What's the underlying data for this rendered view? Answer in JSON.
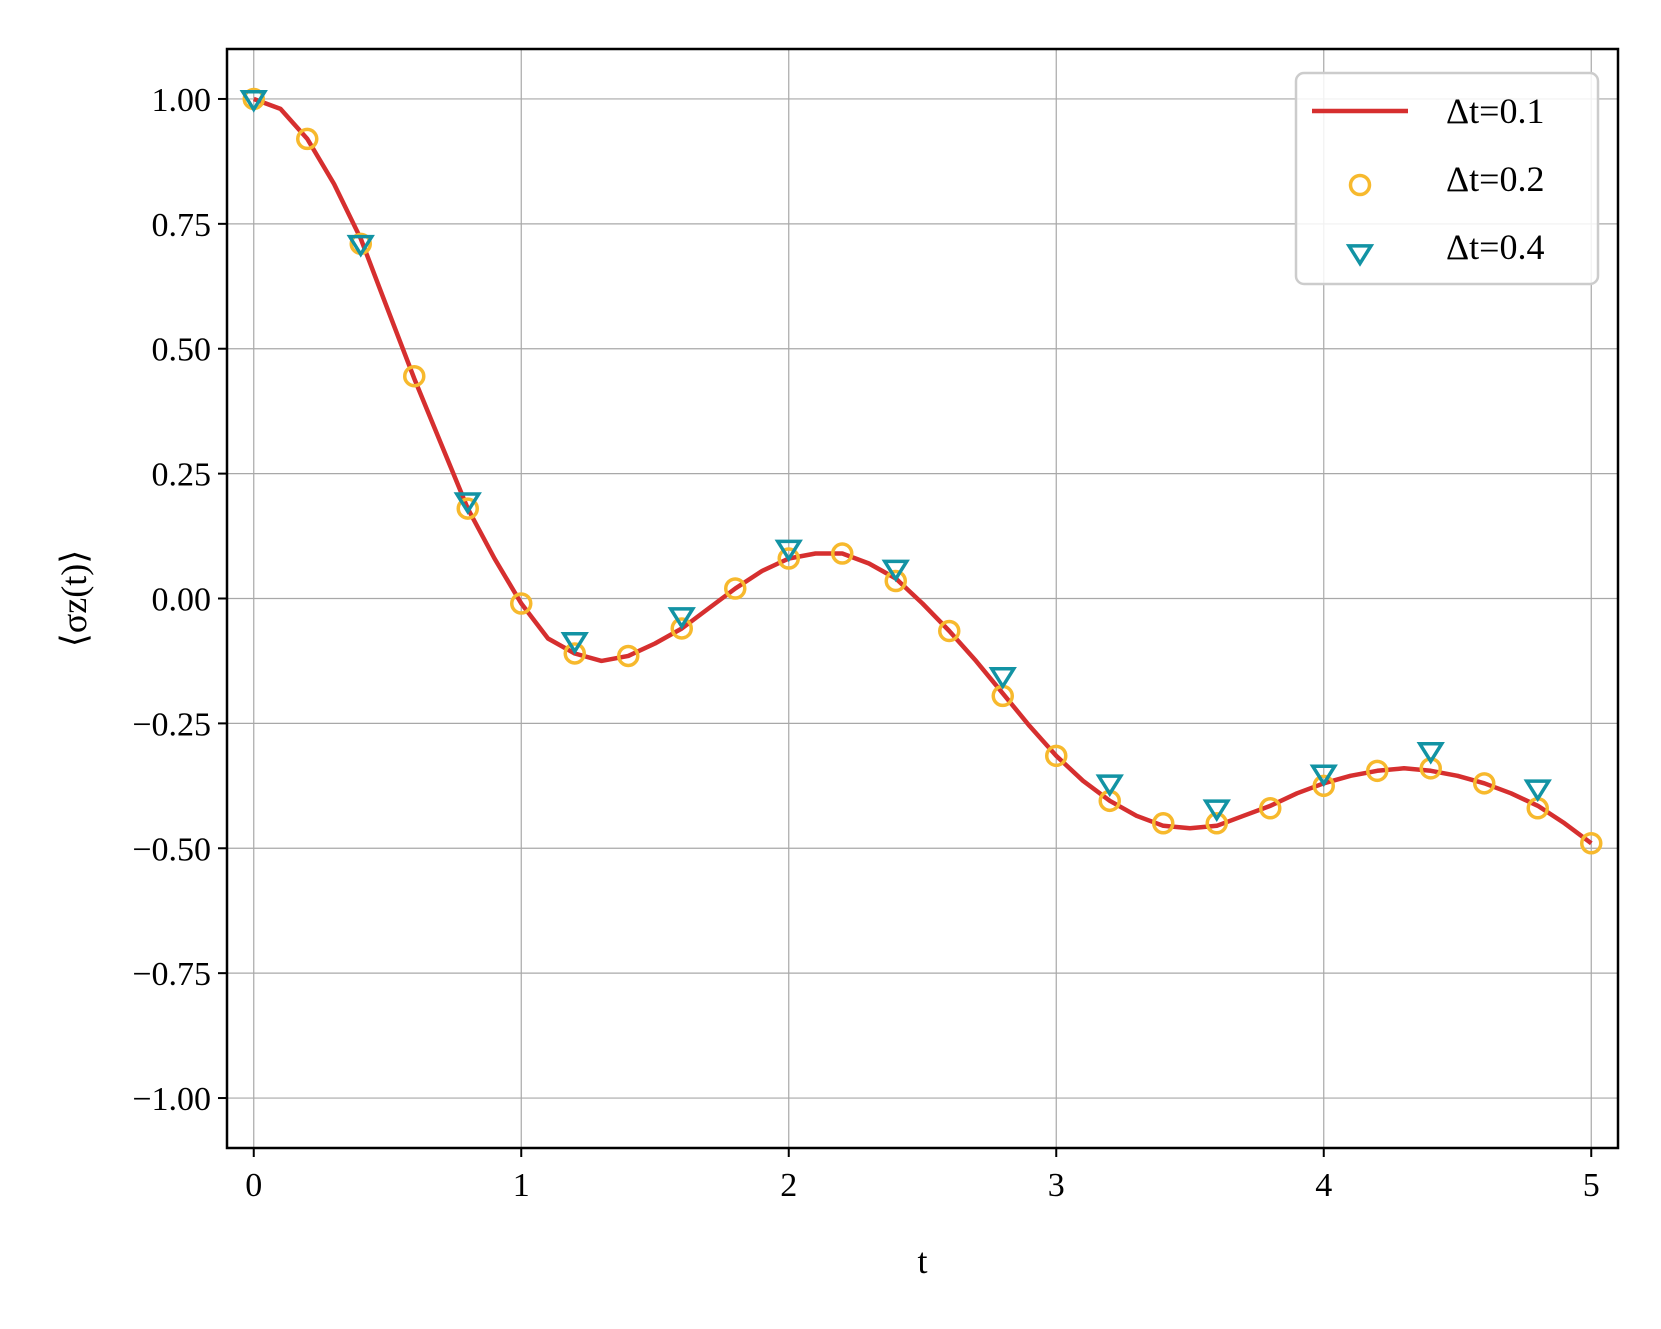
{
  "chart_data": {
    "type": "line",
    "title": "",
    "xlabel": "t",
    "ylabel": "⟨σz(t)⟩",
    "xlim": [
      -0.1,
      5.1
    ],
    "ylim": [
      -1.1,
      1.1
    ],
    "x_ticks": [
      0,
      1,
      2,
      3,
      4,
      5
    ],
    "x_tick_labels": [
      "0",
      "1",
      "2",
      "3",
      "4",
      "5"
    ],
    "y_ticks": [
      1.0,
      0.75,
      0.5,
      0.25,
      0.0,
      -0.25,
      -0.5,
      -0.75,
      -1.0
    ],
    "y_tick_labels": [
      "1.00",
      "0.75",
      "0.50",
      "0.25",
      "0.00",
      "−0.25",
      "−0.50",
      "−0.75",
      "−1.00"
    ],
    "grid": true,
    "legend_position": "top-right",
    "series": [
      {
        "name": "Δt=0.1",
        "style": "line",
        "color": "#d62f2f",
        "x": [
          0,
          0.1,
          0.2,
          0.3,
          0.4,
          0.5,
          0.6,
          0.7,
          0.8,
          0.9,
          1.0,
          1.1,
          1.2,
          1.3,
          1.4,
          1.5,
          1.6,
          1.7,
          1.8,
          1.9,
          2.0,
          2.1,
          2.2,
          2.3,
          2.4,
          2.5,
          2.6,
          2.7,
          2.8,
          2.9,
          3.0,
          3.1,
          3.2,
          3.3,
          3.4,
          3.5,
          3.6,
          3.7,
          3.8,
          3.9,
          4.0,
          4.1,
          4.2,
          4.3,
          4.4,
          4.5,
          4.6,
          4.7,
          4.8,
          4.9,
          5.0
        ],
        "y": [
          1.0,
          0.98,
          0.92,
          0.83,
          0.72,
          0.58,
          0.44,
          0.31,
          0.18,
          0.08,
          -0.01,
          -0.08,
          -0.11,
          -0.125,
          -0.115,
          -0.09,
          -0.06,
          -0.02,
          0.02,
          0.055,
          0.08,
          0.09,
          0.09,
          0.07,
          0.04,
          -0.01,
          -0.065,
          -0.125,
          -0.19,
          -0.255,
          -0.315,
          -0.365,
          -0.405,
          -0.435,
          -0.455,
          -0.46,
          -0.455,
          -0.435,
          -0.415,
          -0.39,
          -0.37,
          -0.355,
          -0.345,
          -0.34,
          -0.345,
          -0.355,
          -0.37,
          -0.39,
          -0.415,
          -0.45,
          -0.49
        ]
      },
      {
        "name": "Δt=0.2",
        "style": "circle",
        "color": "#f7b92d",
        "x": [
          0,
          0.2,
          0.4,
          0.6,
          0.8,
          1.0,
          1.2,
          1.4,
          1.6,
          1.8,
          2.0,
          2.2,
          2.4,
          2.6,
          2.8,
          3.0,
          3.2,
          3.4,
          3.6,
          3.8,
          4.0,
          4.2,
          4.4,
          4.6,
          4.8,
          5.0
        ],
        "y": [
          1.0,
          0.92,
          0.71,
          0.445,
          0.18,
          -0.01,
          -0.11,
          -0.115,
          -0.06,
          0.02,
          0.08,
          0.09,
          0.035,
          -0.065,
          -0.195,
          -0.315,
          -0.405,
          -0.45,
          -0.45,
          -0.42,
          -0.375,
          -0.345,
          -0.34,
          -0.37,
          -0.42,
          -0.49
        ]
      },
      {
        "name": "Δt=0.4",
        "style": "triangle-down",
        "color": "#1293a4",
        "x": [
          0,
          0.4,
          0.8,
          1.2,
          1.6,
          2.0,
          2.4,
          2.8,
          3.2,
          3.6,
          4.0,
          4.4,
          4.8
        ],
        "y": [
          1.0,
          0.71,
          0.195,
          -0.085,
          -0.035,
          0.1,
          0.06,
          -0.155,
          -0.37,
          -0.42,
          -0.35,
          -0.305,
          -0.38
        ]
      }
    ]
  }
}
